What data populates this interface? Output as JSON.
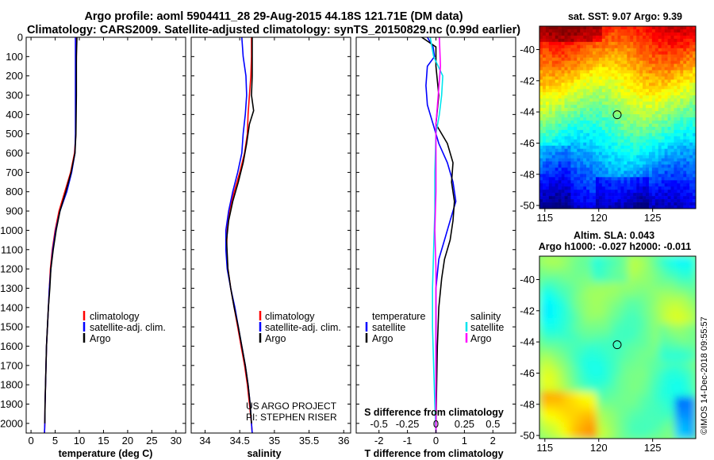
{
  "figure": {
    "title_line1": "Argo profile: aoml 5904411_28 29-Aug-2015 44.18S 121.71E (DM data)",
    "title_line2": "Climatology: CARS2009. Satellite-adjusted climatology: synTS_20150829.nc (0.99d earlier)",
    "credit_line1": "US ARGO PROJECT",
    "credit_line2": "PI: STEPHEN RISER",
    "stamp": "©IMOS 14-Dec-2018 09:55:57"
  },
  "colors": {
    "climatology": "#ff0000",
    "satellite": "#0000ff",
    "argo": "#000000",
    "sal_satellite": "#00e5ee",
    "sal_argo": "#ff00ff"
  },
  "chart_data": [
    {
      "type": "line",
      "id": "temperature",
      "xlabel": "temperature (deg C)",
      "xlim": [
        -1,
        32
      ],
      "xticks": [
        0,
        5,
        10,
        15,
        20,
        25,
        30
      ],
      "ylim": [
        2050,
        0
      ],
      "yticks": [
        0,
        100,
        200,
        300,
        400,
        500,
        600,
        700,
        800,
        900,
        1000,
        1100,
        1200,
        1300,
        1400,
        1500,
        1600,
        1700,
        1800,
        1900,
        2000
      ],
      "legend": [
        "climatology",
        "satellite-adj. clim.",
        "Argo"
      ],
      "legend_placement": "lower-right",
      "series": [
        {
          "name": "climatology",
          "color": "red",
          "points": [
            [
              9.4,
              0
            ],
            [
              9.4,
              100
            ],
            [
              9.3,
              300
            ],
            [
              9.3,
              500
            ],
            [
              9.0,
              600
            ],
            [
              8.2,
              700
            ],
            [
              7.0,
              800
            ],
            [
              5.8,
              900
            ],
            [
              5.0,
              1000
            ],
            [
              4.4,
              1100
            ],
            [
              4.0,
              1200
            ],
            [
              3.8,
              1300
            ],
            [
              3.6,
              1400
            ],
            [
              3.4,
              1500
            ],
            [
              3.2,
              1600
            ],
            [
              3.1,
              1700
            ],
            [
              3.0,
              1800
            ],
            [
              2.9,
              1900
            ],
            [
              2.85,
              2000
            ],
            [
              2.8,
              2050
            ]
          ]
        },
        {
          "name": "satellite-adj. clim.",
          "color": "blue",
          "points": [
            [
              9.2,
              0
            ],
            [
              9.2,
              100
            ],
            [
              9.2,
              300
            ],
            [
              9.2,
              500
            ],
            [
              9.1,
              600
            ],
            [
              8.4,
              700
            ],
            [
              7.4,
              800
            ],
            [
              6.0,
              900
            ],
            [
              5.1,
              1000
            ],
            [
              4.5,
              1100
            ],
            [
              4.1,
              1200
            ],
            [
              3.8,
              1300
            ],
            [
              3.6,
              1400
            ],
            [
              3.4,
              1500
            ],
            [
              3.2,
              1600
            ],
            [
              3.1,
              1700
            ],
            [
              3.0,
              1800
            ],
            [
              2.9,
              1900
            ],
            [
              2.85,
              2000
            ],
            [
              2.8,
              2050
            ]
          ]
        },
        {
          "name": "Argo",
          "color": "black",
          "points": [
            [
              9.5,
              0
            ],
            [
              9.4,
              100
            ],
            [
              9.4,
              300
            ],
            [
              9.3,
              500
            ],
            [
              9.1,
              600
            ],
            [
              8.3,
              700
            ],
            [
              7.2,
              800
            ],
            [
              6.0,
              900
            ],
            [
              5.2,
              1000
            ],
            [
              4.6,
              1100
            ],
            [
              4.1,
              1200
            ],
            [
              3.9,
              1300
            ],
            [
              3.6,
              1400
            ],
            [
              3.4,
              1500
            ],
            [
              3.2,
              1600
            ],
            [
              3.1,
              1700
            ],
            [
              3.0,
              1800
            ],
            [
              2.9,
              1900
            ],
            [
              2.85,
              2000
            ]
          ]
        }
      ]
    },
    {
      "type": "line",
      "id": "salinity",
      "xlabel": "salinity",
      "xlim": [
        33.8,
        36.1
      ],
      "xticks": [
        34,
        34.5,
        35,
        35.5,
        36
      ],
      "xticklabels": [
        "34",
        "34.5",
        "35",
        "35.5",
        "36"
      ],
      "ylim": [
        2050,
        0
      ],
      "legend": [
        "climatology",
        "satellite-adj. clim.",
        "Argo"
      ],
      "legend_placement": "lower-right",
      "series": [
        {
          "name": "climatology",
          "color": "red",
          "points": [
            [
              34.67,
              0
            ],
            [
              34.67,
              100
            ],
            [
              34.66,
              200
            ],
            [
              34.64,
              300
            ],
            [
              34.62,
              400
            ],
            [
              34.61,
              500
            ],
            [
              34.57,
              600
            ],
            [
              34.5,
              700
            ],
            [
              34.42,
              800
            ],
            [
              34.35,
              900
            ],
            [
              34.32,
              1000
            ],
            [
              34.31,
              1100
            ],
            [
              34.33,
              1200
            ],
            [
              34.37,
              1300
            ],
            [
              34.42,
              1400
            ],
            [
              34.47,
              1500
            ],
            [
              34.52,
              1600
            ],
            [
              34.57,
              1700
            ],
            [
              34.61,
              1800
            ],
            [
              34.64,
              1900
            ],
            [
              34.67,
              2000
            ],
            [
              34.68,
              2050
            ]
          ]
        },
        {
          "name": "satellite-adj. clim.",
          "color": "blue",
          "points": [
            [
              34.53,
              0
            ],
            [
              34.55,
              100
            ],
            [
              34.59,
              200
            ],
            [
              34.6,
              300
            ],
            [
              34.58,
              400
            ],
            [
              34.55,
              500
            ],
            [
              34.53,
              600
            ],
            [
              34.47,
              700
            ],
            [
              34.4,
              800
            ],
            [
              34.34,
              900
            ],
            [
              34.3,
              1000
            ],
            [
              34.3,
              1100
            ],
            [
              34.32,
              1200
            ],
            [
              34.37,
              1300
            ],
            [
              34.43,
              1400
            ],
            [
              34.48,
              1500
            ],
            [
              34.53,
              1600
            ],
            [
              34.58,
              1700
            ],
            [
              34.62,
              1800
            ],
            [
              34.65,
              1900
            ],
            [
              34.67,
              2000
            ],
            [
              34.68,
              2050
            ]
          ]
        },
        {
          "name": "Argo",
          "color": "black",
          "points": [
            [
              34.68,
              0
            ],
            [
              34.68,
              100
            ],
            [
              34.68,
              200
            ],
            [
              34.67,
              300
            ],
            [
              34.7,
              380
            ],
            [
              34.64,
              450
            ],
            [
              34.6,
              550
            ],
            [
              34.55,
              650
            ],
            [
              34.48,
              750
            ],
            [
              34.4,
              850
            ],
            [
              34.34,
              950
            ],
            [
              34.31,
              1050
            ],
            [
              34.33,
              1200
            ],
            [
              34.37,
              1300
            ],
            [
              34.42,
              1400
            ],
            [
              34.48,
              1500
            ],
            [
              34.53,
              1600
            ],
            [
              34.58,
              1700
            ],
            [
              34.62,
              1800
            ],
            [
              34.65,
              1900
            ],
            [
              34.67,
              2000
            ]
          ]
        }
      ]
    },
    {
      "type": "line",
      "id": "differences",
      "xlabel": "T difference from climatology",
      "xlim": [
        -2.8,
        2.8
      ],
      "xticks": [
        -2,
        -1,
        0,
        1,
        2
      ],
      "s_axis_label": "S difference from climatology",
      "s_xlim": [
        -0.7,
        0.7
      ],
      "s_xticks": [
        -0.5,
        -0.25,
        0,
        0.25,
        0.5
      ],
      "s_xticklabels": [
        "-0.5",
        "-0.25",
        "0",
        "0.25",
        "0.5"
      ],
      "ylim": [
        2050,
        0
      ],
      "legend_left_title": "temperature",
      "legend_left": [
        "satellite",
        "Argo"
      ],
      "legend_right_title": "salinity",
      "legend_right": [
        "satellite",
        "Argo"
      ],
      "series": [
        {
          "name": "T satellite",
          "color": "blue",
          "points": [
            [
              -0.3,
              0
            ],
            [
              -0.1,
              50
            ],
            [
              -0.05,
              100
            ],
            [
              -0.3,
              150
            ],
            [
              -0.35,
              250
            ],
            [
              -0.3,
              350
            ],
            [
              -0.1,
              450
            ],
            [
              0.1,
              550
            ],
            [
              0.4,
              650
            ],
            [
              0.6,
              750
            ],
            [
              0.7,
              850
            ],
            [
              0.5,
              950
            ],
            [
              0.3,
              1050
            ],
            [
              0.1,
              1150
            ],
            [
              0.0,
              1300
            ],
            [
              0.0,
              1600
            ],
            [
              0.0,
              2050
            ]
          ]
        },
        {
          "name": "T Argo",
          "color": "black",
          "points": [
            [
              -0.5,
              0
            ],
            [
              0.0,
              50
            ],
            [
              0.0,
              150
            ],
            [
              0.1,
              300
            ],
            [
              0.0,
              450
            ],
            [
              0.4,
              550
            ],
            [
              0.6,
              650
            ],
            [
              0.55,
              750
            ],
            [
              0.65,
              850
            ],
            [
              0.6,
              950
            ],
            [
              0.5,
              1050
            ],
            [
              0.3,
              1150
            ],
            [
              0.2,
              1250
            ],
            [
              0.1,
              1400
            ],
            [
              0.05,
              1600
            ],
            [
              0.0,
              2000
            ]
          ]
        },
        {
          "name": "S satellite",
          "color": "cyan",
          "points": [
            [
              -0.05,
              0
            ],
            [
              -0.02,
              100
            ],
            [
              0.06,
              200
            ],
            [
              0.05,
              300
            ],
            [
              0.03,
              400
            ],
            [
              0.0,
              500
            ],
            [
              -0.01,
              700
            ],
            [
              -0.01,
              900
            ],
            [
              -0.02,
              1100
            ],
            [
              -0.03,
              1300
            ],
            [
              -0.03,
              1500
            ],
            [
              -0.02,
              1700
            ],
            [
              -0.01,
              1900
            ],
            [
              0.0,
              2050
            ]
          ]
        },
        {
          "name": "S Argo",
          "color": "magenta",
          "points": [
            [
              0.03,
              0
            ],
            [
              0.04,
              150
            ],
            [
              0.02,
              300
            ],
            [
              0.0,
              450
            ],
            [
              0.0,
              600
            ],
            [
              0.0,
              800
            ],
            [
              -0.01,
              1000
            ],
            [
              0.0,
              1200
            ],
            [
              0.0,
              1500
            ],
            [
              0.0,
              1800
            ],
            [
              0.0,
              2050
            ]
          ]
        }
      ]
    },
    {
      "type": "heatmap",
      "id": "sst-map",
      "title": "sat. SST: 9.07 Argo: 9.39",
      "xticks": [
        115,
        120,
        125
      ],
      "xlim": [
        114.5,
        129
      ],
      "yticks": [
        -40,
        -42,
        -44,
        -46,
        -48,
        -50
      ],
      "ylim": [
        -50.2,
        -38.5
      ],
      "marker": {
        "lon": 121.71,
        "lat": -44.18
      }
    },
    {
      "type": "heatmap",
      "id": "sla-map",
      "title_line1": "Altim. SLA: 0.043",
      "title_line2": "Argo h1000: -0.027 h2000: -0.011",
      "xticks": [
        115,
        120,
        125
      ],
      "xlim": [
        114.5,
        129
      ],
      "yticks": [
        -40,
        -42,
        -44,
        -46,
        -48,
        -50
      ],
      "ylim": [
        -50.2,
        -38.5
      ],
      "marker": {
        "lon": 121.71,
        "lat": -44.18
      }
    }
  ]
}
